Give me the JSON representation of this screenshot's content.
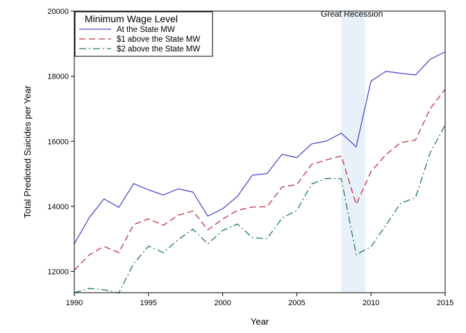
{
  "chart_data": {
    "type": "line",
    "xlabel": "Year",
    "ylabel": "Total Predicted Suicides per Year",
    "xlim": [
      1990,
      2015
    ],
    "ylim": [
      11350,
      20000
    ],
    "x_ticks": [
      1990,
      1995,
      2000,
      2005,
      2010,
      2015
    ],
    "y_ticks": [
      12000,
      14000,
      16000,
      18000,
      20000
    ],
    "grid": false,
    "legend": {
      "title": "Minimum Wage Level",
      "placement": "top-left"
    },
    "x": [
      1990,
      1991,
      1992,
      1993,
      1994,
      1995,
      1996,
      1997,
      1998,
      1999,
      2000,
      2001,
      2002,
      2003,
      2004,
      2005,
      2006,
      2007,
      2008,
      2009,
      2010,
      2011,
      2012,
      2013,
      2014,
      2015
    ],
    "series": [
      {
        "name": "At the State MW",
        "color": "#4a4ac8",
        "dash": "solid",
        "values": [
          12850,
          13650,
          14230,
          13970,
          14700,
          14510,
          14350,
          14540,
          14440,
          13700,
          13930,
          14310,
          14960,
          15010,
          15600,
          15500,
          15920,
          16010,
          16250,
          15830,
          17850,
          18150,
          18090,
          18040,
          18520,
          18750
        ]
      },
      {
        "name": "$1 above the State MW",
        "color": "#c03040",
        "dash": "dash",
        "values": [
          12040,
          12510,
          12770,
          12580,
          13440,
          13620,
          13420,
          13730,
          13860,
          13280,
          13610,
          13880,
          13980,
          13990,
          14600,
          14670,
          15290,
          15430,
          15550,
          14060,
          15070,
          15590,
          15960,
          16040,
          17010,
          17600
        ]
      },
      {
        "name": "$2 above the State MW",
        "color": "#1a7a60",
        "dash": "dashdot",
        "values": [
          11350,
          11480,
          11440,
          11340,
          12240,
          12780,
          12580,
          12980,
          13300,
          12850,
          13260,
          13460,
          13040,
          13010,
          13640,
          13880,
          14690,
          14860,
          14850,
          12520,
          12760,
          13420,
          14100,
          14270,
          15660,
          16500
        ]
      }
    ],
    "shaded_region": {
      "label": "Great Recession",
      "x_start": 2008,
      "x_end": 2009.6,
      "color": "#e8f1fa"
    }
  }
}
